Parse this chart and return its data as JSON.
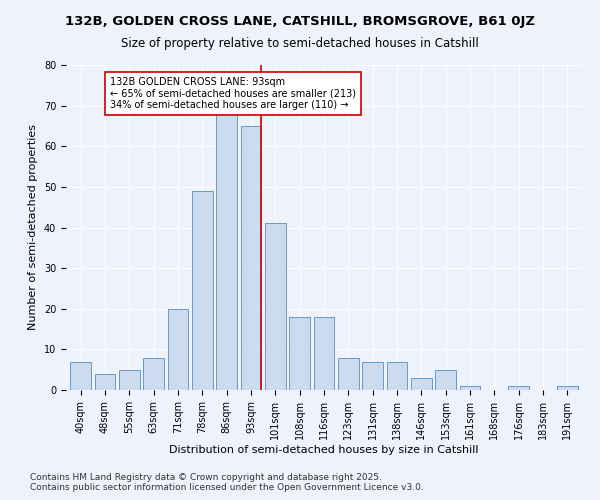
{
  "title1": "132B, GOLDEN CROSS LANE, CATSHILL, BROMSGROVE, B61 0JZ",
  "title2": "Size of property relative to semi-detached houses in Catshill",
  "xlabel": "Distribution of semi-detached houses by size in Catshill",
  "ylabel": "Number of semi-detached properties",
  "categories": [
    "40sqm",
    "48sqm",
    "55sqm",
    "63sqm",
    "71sqm",
    "78sqm",
    "86sqm",
    "93sqm",
    "101sqm",
    "108sqm",
    "116sqm",
    "123sqm",
    "131sqm",
    "138sqm",
    "146sqm",
    "153sqm",
    "161sqm",
    "168sqm",
    "176sqm",
    "183sqm",
    "191sqm"
  ],
  "values": [
    7,
    4,
    5,
    8,
    20,
    49,
    68,
    65,
    41,
    18,
    18,
    8,
    7,
    7,
    3,
    5,
    1,
    0,
    1,
    0,
    1
  ],
  "bar_color": "#ccdcee",
  "bar_edge_color": "#6699cc",
  "vline_color": "#cc0000",
  "annotation_text": "132B GOLDEN CROSS LANE: 93sqm\n← 65% of semi-detached houses are smaller (213)\n34% of semi-detached houses are larger (110) →",
  "annotation_box_color": "#ffffff",
  "annotation_box_edge": "#cc0000",
  "ylim": [
    0,
    80
  ],
  "yticks": [
    0,
    10,
    20,
    30,
    40,
    50,
    60,
    70,
    80
  ],
  "background_color": "#eef2fb",
  "footer1": "Contains HM Land Registry data © Crown copyright and database right 2025.",
  "footer2": "Contains public sector information licensed under the Open Government Licence v3.0.",
  "title_fontsize": 9.5,
  "subtitle_fontsize": 8.5,
  "axis_label_fontsize": 8,
  "tick_fontsize": 7,
  "annotation_fontsize": 7,
  "footer_fontsize": 6.5
}
